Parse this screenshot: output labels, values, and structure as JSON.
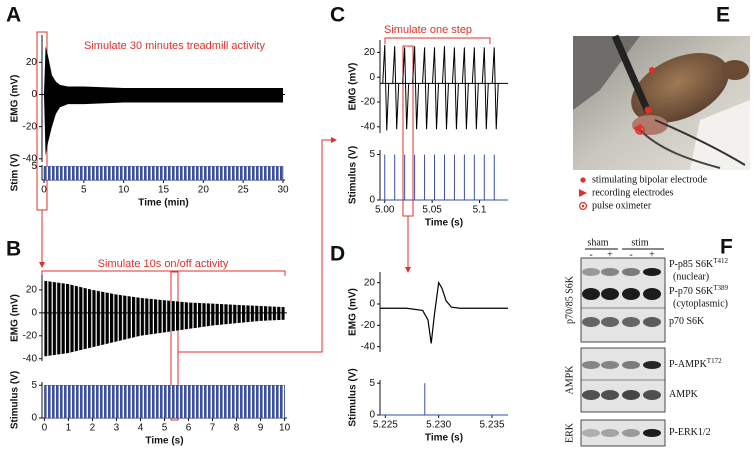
{
  "panel_letters": [
    "A",
    "B",
    "C",
    "D",
    "E",
    "F"
  ],
  "annotations": [
    "Simulate 30 minutes treadmill activity",
    "Simulate 10s on/off activity",
    "Simulate one step"
  ],
  "chart_data": [
    {
      "type": "envelope",
      "ylabel": "EMG (mV)",
      "x": [
        0,
        0.2,
        0.5,
        1,
        1.5,
        2,
        3,
        5,
        10,
        15,
        20,
        25,
        30
      ],
      "upper": [
        0,
        30,
        24,
        12,
        8,
        6,
        5,
        5,
        4,
        4,
        4,
        4,
        4
      ],
      "lower": [
        0,
        -38,
        -30,
        -20,
        -12,
        -8,
        -6,
        -6,
        -5,
        -5,
        -5,
        -5,
        -5
      ],
      "xlim": [
        -0.25,
        30.25
      ],
      "ylim": [
        -42,
        37
      ],
      "yticks": [
        -40,
        -20,
        0,
        20
      ],
      "color": "#000000"
    },
    {
      "type": "band",
      "ylabel": "Stim (V)",
      "xlabel": "Time (min)",
      "span": [
        0,
        30
      ],
      "value": 5,
      "xlim": [
        -0.25,
        30.25
      ],
      "ylim": [
        0,
        5.5
      ],
      "yticks": [
        5
      ],
      "xticks": [
        0,
        5,
        10,
        15,
        20,
        25,
        30
      ],
      "color": "#3a4fa0"
    },
    {
      "type": "envelope",
      "ylabel": "EMG (mV)",
      "x": [
        0,
        1,
        2,
        3,
        4,
        5,
        6,
        7,
        8,
        9,
        10
      ],
      "upper": [
        28,
        25,
        20,
        16,
        13,
        11,
        9,
        8,
        7,
        6,
        5
      ],
      "lower": [
        -38,
        -35,
        -30,
        -25,
        -20,
        -17,
        -14,
        -11,
        -9,
        -7,
        -6
      ],
      "xlim": [
        -0.1,
        10.1
      ],
      "ylim": [
        -42,
        33
      ],
      "yticks": [
        -40,
        -20,
        0,
        20
      ],
      "color": "#000000",
      "striped": true
    },
    {
      "type": "band",
      "ylabel": "Stimulus (V)",
      "xlabel": "Time (s)",
      "span": [
        0,
        10
      ],
      "value": 5,
      "xlim": [
        -0.1,
        10.1
      ],
      "ylim": [
        0,
        5.5
      ],
      "yticks": [
        0,
        5
      ],
      "xticks": [
        0,
        1,
        2,
        3,
        4,
        5,
        6,
        7,
        8,
        9,
        10
      ],
      "color": "#3a4fa0"
    },
    {
      "type": "spikes",
      "ylabel": "EMG (mV)",
      "baseline": -5,
      "x": [
        5.0,
        5.0105,
        5.021,
        5.0315,
        5.042,
        5.0525,
        5.063,
        5.0735,
        5.084,
        5.0945,
        5.105,
        5.1155
      ],
      "upper": [
        26,
        25,
        24,
        25,
        24,
        24,
        25,
        24,
        24,
        24,
        24,
        24
      ],
      "lower": [
        -43,
        -42,
        -42,
        -42,
        -42,
        -42,
        -42,
        -42,
        -42,
        -42,
        -42,
        -42
      ],
      "xlim": [
        4.995,
        5.13
      ],
      "ylim": [
        -45,
        30
      ],
      "yticks": [
        -40,
        -20,
        0,
        20
      ],
      "color": "#000000"
    },
    {
      "type": "pulses",
      "ylabel": "Stimulus (V)",
      "xlabel": "Time (s)",
      "x": [
        5.0,
        5.0105,
        5.021,
        5.0315,
        5.042,
        5.0525,
        5.063,
        5.0735,
        5.084,
        5.0945,
        5.105,
        5.1155
      ],
      "values": [
        5,
        5,
        5,
        5,
        5,
        5,
        5,
        5,
        5,
        5,
        5,
        5
      ],
      "xlim": [
        4.995,
        5.13
      ],
      "ylim": [
        0,
        5.5
      ],
      "yticks": [
        0,
        5
      ],
      "xticks": [
        {
          "value": 5,
          "label": "5.00"
        },
        5.05,
        5.1
      ],
      "color": "#3a4fa0"
    },
    {
      "type": "line",
      "ylabel": "EMG (mV)",
      "x": [
        5.2245,
        5.227,
        5.2285,
        5.229,
        5.2293,
        5.2296,
        5.23,
        5.2303,
        5.2307,
        5.2312,
        5.232,
        5.2365
      ],
      "values": [
        -4,
        -4,
        -6,
        -15,
        -37,
        -10,
        20,
        15,
        3,
        -3,
        -4,
        -4
      ],
      "xlim": [
        5.2245,
        5.2365
      ],
      "ylim": [
        -45,
        30
      ],
      "yticks": [
        -40,
        -20,
        0,
        20
      ],
      "color": "#000000"
    },
    {
      "type": "pulses",
      "ylabel": "Stimulus (V)",
      "xlabel": "Time (s)",
      "x": [
        5.2287
      ],
      "values": [
        5
      ],
      "xlim": [
        5.2245,
        5.2365
      ],
      "ylim": [
        0,
        5.5
      ],
      "yticks": [
        0,
        5
      ],
      "xticks": [
        5.225,
        {
          "value": 5.23,
          "label": "5.230"
        },
        5.235
      ],
      "color": "#3a4fa0"
    }
  ],
  "photo_legend": [
    "stimulating bipolar electrode",
    "recording electrodes",
    "pulse oximeter"
  ],
  "blot": {
    "groups": [
      "sham",
      "stim"
    ],
    "lanes": [
      "-",
      "+",
      "-",
      "+"
    ],
    "sections": [
      "p70/85 S6K",
      "AMPK",
      "ERK"
    ],
    "bands": [
      {
        "label": "P-p85 S6K",
        "sup": "T412",
        "note": "(nuclear)"
      },
      {
        "label": "P-p70 S6K",
        "sup": "T389",
        "note": "(cytoplasmic)"
      },
      {
        "label": "p70 S6K"
      },
      {
        "label": "P-AMPK",
        "sup": "T172"
      },
      {
        "label": "AMPK"
      },
      {
        "label": "P-ERK1/2"
      }
    ]
  }
}
